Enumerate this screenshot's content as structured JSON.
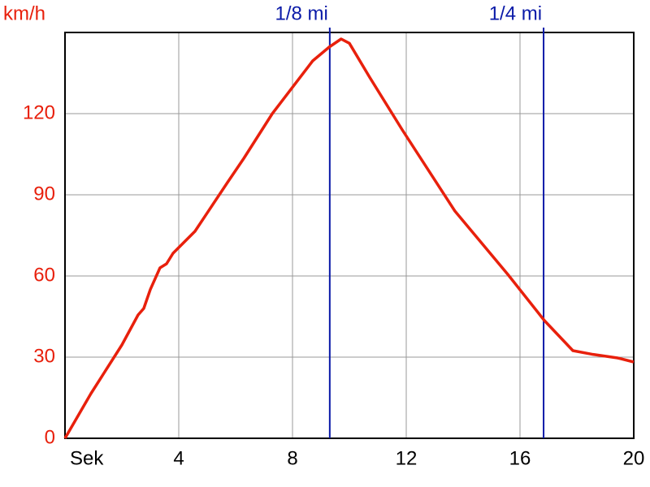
{
  "chart_data": {
    "type": "line",
    "y_label": "km/h",
    "x": [
      0,
      0.91,
      2,
      2.57,
      2.77,
      3.0,
      3.34,
      3.57,
      3.8,
      4.57,
      5.71,
      6.29,
      7.29,
      8.71,
      9.29,
      9.71,
      10,
      10.71,
      11.86,
      13.71,
      15.57,
      16.86,
      17.86,
      18.57,
      19.43,
      20
    ],
    "values": [
      0,
      16.5,
      34.5,
      45.6,
      48,
      55,
      63,
      64.5,
      68.4,
      76.5,
      94.5,
      103.5,
      120,
      139.5,
      144.6,
      147.6,
      146,
      133.5,
      114,
      84,
      60.6,
      43.5,
      32.4,
      31,
      29.7,
      28.2
    ],
    "color": "#e8200c",
    "xlim": [
      0,
      20
    ],
    "xticks": [
      {
        "value": 0,
        "label": "Sek"
      },
      4,
      8,
      12,
      16,
      20
    ],
    "ylim": [
      0,
      150
    ],
    "yticks": [
      0,
      30,
      60,
      90,
      120
    ],
    "grid": true,
    "markers": [
      {
        "label": "1/8 mi",
        "x": 9.31,
        "color": "#0a1aa8"
      },
      {
        "label": "1/4 mi",
        "x": 16.83,
        "color": "#0a1aa8"
      }
    ]
  }
}
